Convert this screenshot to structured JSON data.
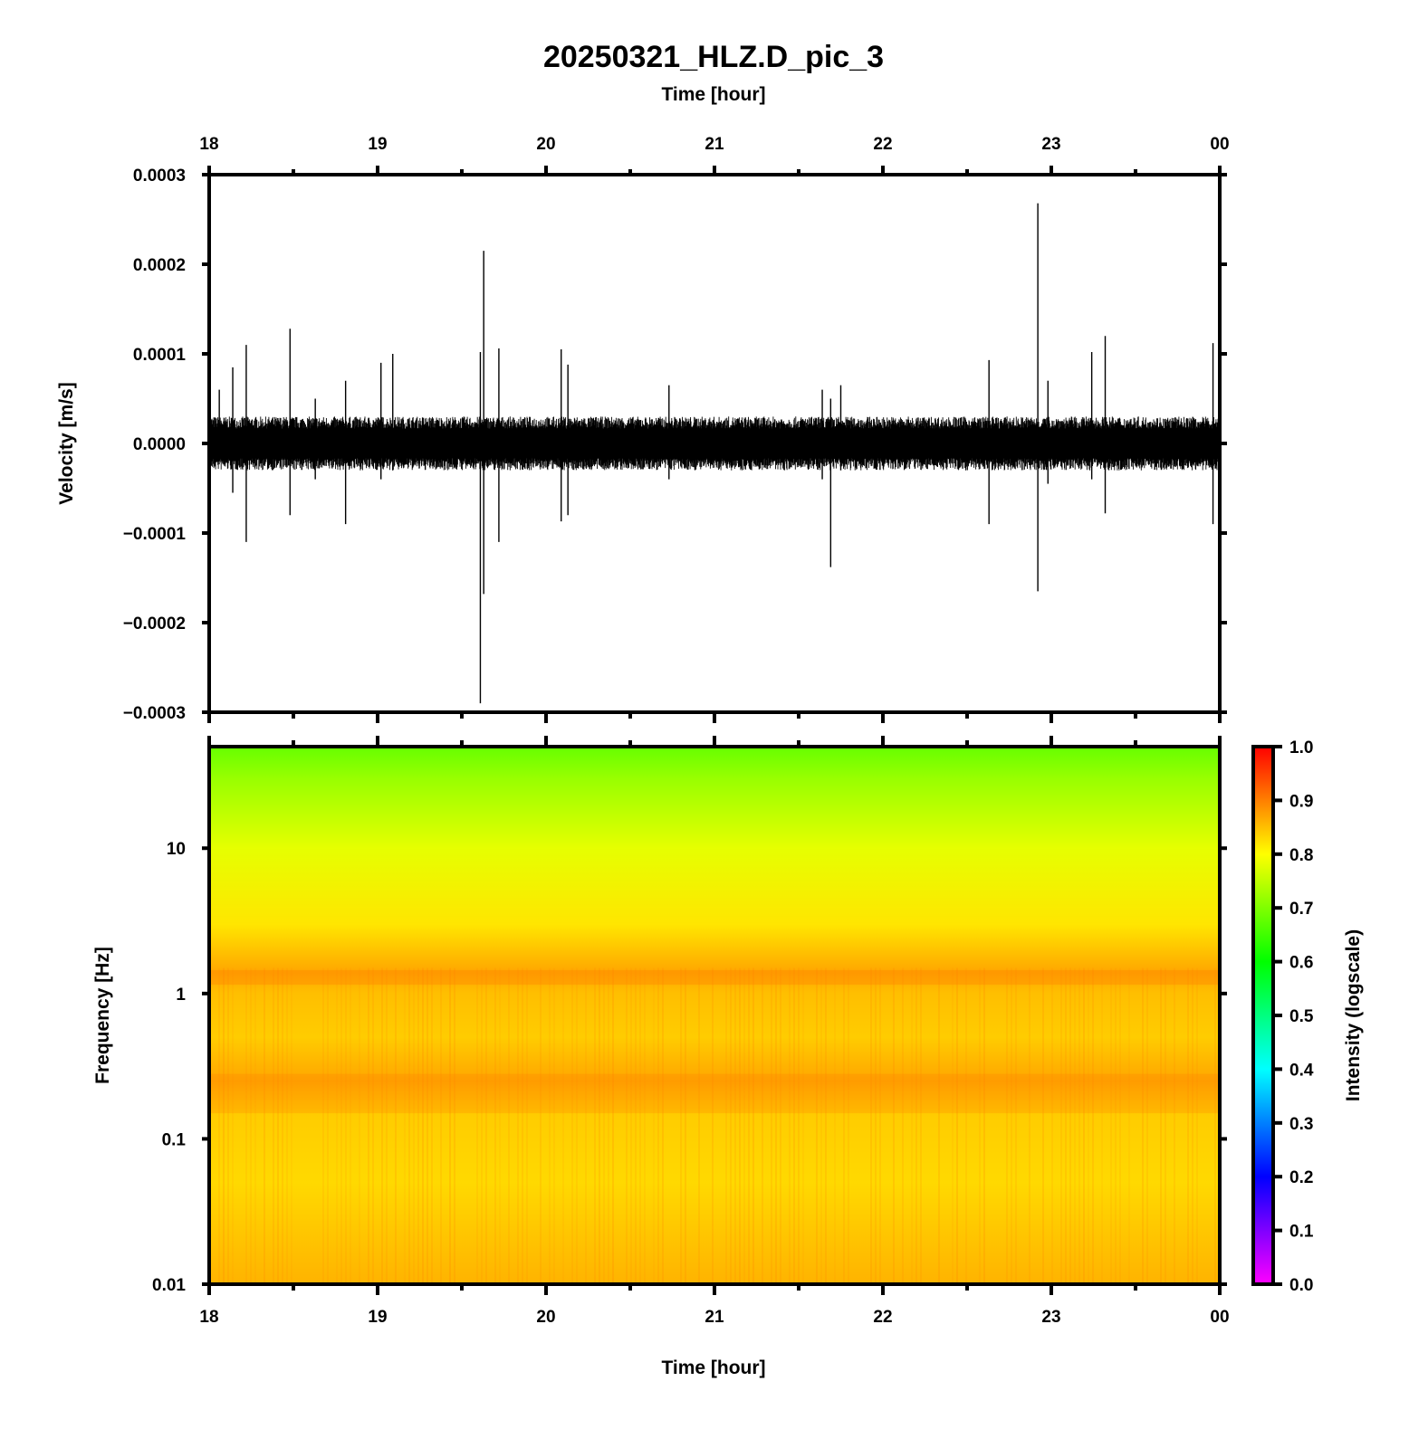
{
  "title": "20250321_HLZ.D_pic_3",
  "top_axis_label": "Time [hour]",
  "bottom_axis_label": "Time [hour]",
  "colorbar_label": "Intensity (logscale)",
  "colors": {
    "trace": "#000000",
    "colormap": [
      "#ff00ff",
      "#0000ff",
      "#00ffff",
      "#00ff00",
      "#ffff00",
      "#ff0000"
    ]
  },
  "chart_data": [
    {
      "type": "line",
      "name": "waveform",
      "ylabel": "Velocity [m/s]",
      "xlabel": "Time [hour]",
      "x_ticks": [
        "18",
        "19",
        "20",
        "21",
        "22",
        "23",
        "00"
      ],
      "xlim": [
        18,
        24
      ],
      "ylim": [
        -0.0003,
        0.0003
      ],
      "y_ticks": [
        "0.0003",
        "0.0002",
        "0.0001",
        "0.0000",
        "−0.0001",
        "−0.0002",
        "−0.0003"
      ],
      "background_noise_amplitude": 3e-05,
      "spikes": [
        {
          "x": 18.06,
          "max": 6e-05,
          "min": -2e-05
        },
        {
          "x": 18.14,
          "max": 8.5e-05,
          "min": -5.5e-05
        },
        {
          "x": 18.22,
          "max": 0.00011,
          "min": -0.00011
        },
        {
          "x": 18.48,
          "max": 0.000128,
          "min": -8e-05
        },
        {
          "x": 18.63,
          "max": 5e-05,
          "min": -4e-05
        },
        {
          "x": 18.81,
          "max": 7e-05,
          "min": -9e-05
        },
        {
          "x": 19.02,
          "max": 9e-05,
          "min": -4e-05
        },
        {
          "x": 19.09,
          "max": 0.0001,
          "min": -3e-05
        },
        {
          "x": 19.61,
          "max": 0.000102,
          "min": -0.00029
        },
        {
          "x": 19.63,
          "max": 0.000215,
          "min": -0.000168
        },
        {
          "x": 19.72,
          "max": 0.000106,
          "min": -0.00011
        },
        {
          "x": 20.09,
          "max": 0.000105,
          "min": -8.7e-05
        },
        {
          "x": 20.13,
          "max": 8.8e-05,
          "min": -8e-05
        },
        {
          "x": 20.73,
          "max": 6.5e-05,
          "min": -4e-05
        },
        {
          "x": 21.64,
          "max": 6e-05,
          "min": -4e-05
        },
        {
          "x": 21.69,
          "max": 5e-05,
          "min": -0.000138
        },
        {
          "x": 21.75,
          "max": 6.5e-05,
          "min": -3e-05
        },
        {
          "x": 22.63,
          "max": 9.3e-05,
          "min": -9e-05
        },
        {
          "x": 22.92,
          "max": 0.000268,
          "min": -0.000165
        },
        {
          "x": 22.98,
          "max": 7e-05,
          "min": -4.5e-05
        },
        {
          "x": 23.24,
          "max": 0.000102,
          "min": -4e-05
        },
        {
          "x": 23.32,
          "max": 0.00012,
          "min": -7.8e-05
        },
        {
          "x": 23.96,
          "max": 0.000112,
          "min": -9e-05
        }
      ]
    },
    {
      "type": "heatmap",
      "name": "spectrogram",
      "ylabel": "Frequency [Hz]",
      "xlabel": "Time [hour]",
      "x_ticks": [
        "18",
        "19",
        "20",
        "21",
        "22",
        "23",
        "00"
      ],
      "xlim": [
        18,
        24
      ],
      "yscale": "log",
      "ylim": [
        0.01,
        50
      ],
      "y_ticks": [
        "10",
        "1",
        "0.1",
        "0.01"
      ],
      "y_tick_values": [
        10,
        1,
        0.1,
        0.01
      ],
      "intensity_profile": [
        {
          "freq": 50,
          "intensity": 0.68
        },
        {
          "freq": 30,
          "intensity": 0.72
        },
        {
          "freq": 10,
          "intensity": 0.78
        },
        {
          "freq": 3,
          "intensity": 0.82
        },
        {
          "freq": 1.4,
          "intensity": 0.87
        },
        {
          "freq": 1.0,
          "intensity": 0.85
        },
        {
          "freq": 0.5,
          "intensity": 0.84
        },
        {
          "freq": 0.25,
          "intensity": 0.87
        },
        {
          "freq": 0.15,
          "intensity": 0.84
        },
        {
          "freq": 0.05,
          "intensity": 0.83
        },
        {
          "freq": 0.01,
          "intensity": 0.86
        }
      ],
      "colorbar": {
        "range": [
          0.0,
          1.0
        ],
        "ticks": [
          "1.0",
          "0.9",
          "0.8",
          "0.7",
          "0.6",
          "0.5",
          "0.4",
          "0.3",
          "0.2",
          "0.1",
          "0.0"
        ]
      }
    }
  ]
}
